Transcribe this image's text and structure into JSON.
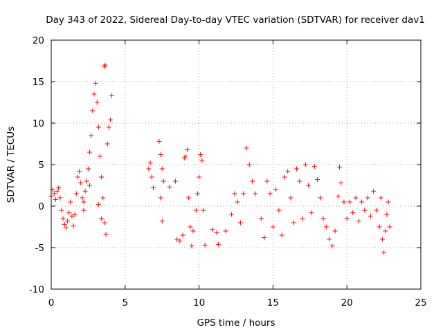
{
  "chart_data": {
    "type": "scatter",
    "title": "Day 343 of 2022, Sidereal Day-to-day VTEC variation (SDTVAR) for receiver dav1",
    "xlabel": "GPS time / hours",
    "ylabel": "SDTVAR / TECUs",
    "xlim": [
      0,
      25
    ],
    "ylim": [
      -10,
      20
    ],
    "xticks": [
      0,
      5,
      10,
      15,
      20,
      25
    ],
    "xtick_labels": [
      "0",
      "5",
      "10",
      "15",
      "20",
      "25"
    ],
    "yticks": [
      -10,
      -5,
      0,
      5,
      10,
      15,
      20
    ],
    "ytick_labels": [
      "-10",
      "-5",
      "0",
      "5",
      "10",
      "15",
      "20"
    ],
    "grid": true,
    "marker": "plus",
    "color": "#ff0000",
    "series": [
      {
        "name": "dav1",
        "points": [
          [
            0.0,
            1.2
          ],
          [
            0.1,
            2.0
          ],
          [
            0.2,
            1.5
          ],
          [
            0.3,
            0.8
          ],
          [
            0.4,
            1.8
          ],
          [
            0.5,
            2.2
          ],
          [
            0.6,
            1.0
          ],
          [
            0.7,
            -0.5
          ],
          [
            0.8,
            -1.5
          ],
          [
            0.9,
            -2.2
          ],
          [
            1.0,
            -2.6
          ],
          [
            1.1,
            -1.8
          ],
          [
            1.2,
            -0.8
          ],
          [
            1.3,
            0.5
          ],
          [
            1.4,
            -1.2
          ],
          [
            1.5,
            -2.4
          ],
          [
            1.6,
            -1.0
          ],
          [
            1.7,
            1.5
          ],
          [
            1.8,
            3.5
          ],
          [
            1.9,
            4.2
          ],
          [
            2.0,
            2.8
          ],
          [
            2.1,
            1.0
          ],
          [
            2.2,
            -0.5
          ],
          [
            2.3,
            1.8
          ],
          [
            2.4,
            3.0
          ],
          [
            2.5,
            4.5
          ],
          [
            2.6,
            6.5
          ],
          [
            2.7,
            8.5
          ],
          [
            2.8,
            11.5
          ],
          [
            2.9,
            13.5
          ],
          [
            3.0,
            14.8
          ],
          [
            3.1,
            12.5
          ],
          [
            3.2,
            9.5
          ],
          [
            3.3,
            6.0
          ],
          [
            3.4,
            3.5
          ],
          [
            3.5,
            1.0
          ],
          [
            3.6,
            -2.0
          ],
          [
            3.7,
            -3.4
          ],
          [
            3.8,
            7.5
          ],
          [
            3.9,
            9.5
          ],
          [
            4.0,
            10.4
          ],
          [
            4.1,
            13.3
          ],
          [
            3.6,
            16.8
          ],
          [
            3.65,
            17.0
          ],
          [
            3.2,
            0.2
          ],
          [
            3.4,
            -1.5
          ],
          [
            2.2,
            0.5
          ],
          [
            2.6,
            2.5
          ],
          [
            6.6,
            4.5
          ],
          [
            6.7,
            5.2
          ],
          [
            6.8,
            3.5
          ],
          [
            6.9,
            2.2
          ],
          [
            7.3,
            7.8
          ],
          [
            7.4,
            6.2
          ],
          [
            7.5,
            4.5
          ],
          [
            7.6,
            3.0
          ],
          [
            7.4,
            1.0
          ],
          [
            7.5,
            -1.8
          ],
          [
            8.0,
            2.3
          ],
          [
            8.4,
            3.0
          ],
          [
            8.5,
            -4.0
          ],
          [
            8.7,
            -4.2
          ],
          [
            8.9,
            -3.5
          ],
          [
            9.0,
            5.8
          ],
          [
            9.1,
            6.0
          ],
          [
            9.2,
            6.8
          ],
          [
            9.3,
            1.0
          ],
          [
            9.4,
            -2.5
          ],
          [
            9.5,
            -4.8
          ],
          [
            9.6,
            -3.0
          ],
          [
            9.8,
            -0.5
          ],
          [
            9.9,
            1.5
          ],
          [
            10.0,
            3.5
          ],
          [
            10.1,
            6.2
          ],
          [
            10.2,
            5.5
          ],
          [
            10.3,
            -0.5
          ],
          [
            10.4,
            -4.7
          ],
          [
            10.9,
            -2.8
          ],
          [
            11.2,
            -3.2
          ],
          [
            11.3,
            -4.6
          ],
          [
            11.8,
            -3.0
          ],
          [
            12.2,
            -1.0
          ],
          [
            12.4,
            1.5
          ],
          [
            12.6,
            0.5
          ],
          [
            12.8,
            -2.0
          ],
          [
            13.0,
            1.5
          ],
          [
            13.2,
            7.0
          ],
          [
            13.4,
            5.0
          ],
          [
            13.6,
            3.0
          ],
          [
            13.8,
            1.5
          ],
          [
            14.2,
            -1.5
          ],
          [
            14.4,
            -3.8
          ],
          [
            14.6,
            3.0
          ],
          [
            14.8,
            1.5
          ],
          [
            15.0,
            -2.5
          ],
          [
            15.2,
            2.0
          ],
          [
            15.4,
            -0.5
          ],
          [
            15.6,
            -3.5
          ],
          [
            15.8,
            3.5
          ],
          [
            16.0,
            4.2
          ],
          [
            16.2,
            1.0
          ],
          [
            16.4,
            -2.0
          ],
          [
            16.6,
            4.5
          ],
          [
            16.8,
            3.0
          ],
          [
            17.0,
            -1.5
          ],
          [
            17.2,
            5.0
          ],
          [
            17.4,
            2.5
          ],
          [
            17.6,
            -0.8
          ],
          [
            17.8,
            4.8
          ],
          [
            18.0,
            3.2
          ],
          [
            18.2,
            1.0
          ],
          [
            18.4,
            -1.5
          ],
          [
            18.6,
            -2.5
          ],
          [
            18.8,
            -4.0
          ],
          [
            19.0,
            -4.8
          ],
          [
            19.2,
            -3.0
          ],
          [
            19.4,
            1.2
          ],
          [
            19.5,
            4.7
          ],
          [
            19.6,
            2.8
          ],
          [
            19.8,
            0.5
          ],
          [
            20.0,
            -1.5
          ],
          [
            20.2,
            0.5
          ],
          [
            20.4,
            -0.8
          ],
          [
            20.6,
            1.0
          ],
          [
            20.8,
            -1.8
          ],
          [
            21.0,
            0.5
          ],
          [
            21.2,
            -0.5
          ],
          [
            21.4,
            1.0
          ],
          [
            21.6,
            -1.2
          ],
          [
            21.8,
            1.8
          ],
          [
            22.0,
            -0.5
          ],
          [
            22.2,
            -2.5
          ],
          [
            22.4,
            -4.0
          ],
          [
            22.5,
            -5.6
          ],
          [
            22.6,
            -3.0
          ],
          [
            22.7,
            -1.0
          ],
          [
            22.8,
            0.5
          ],
          [
            22.3,
            1.0
          ],
          [
            22.9,
            -2.5
          ]
        ]
      }
    ]
  }
}
